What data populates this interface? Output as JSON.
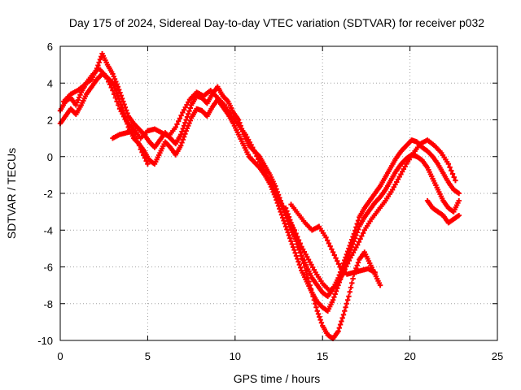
{
  "chart_data": {
    "type": "scatter",
    "title": "Day 175 of 2024, Sidereal Day-to-day VTEC variation (SDTVAR) for receiver p032",
    "xlabel": "GPS time / hours",
    "ylabel": "SDTVAR / TECUs",
    "xlim": [
      0,
      25
    ],
    "ylim": [
      -10,
      6
    ],
    "xticks": [
      0,
      5,
      10,
      15,
      20,
      25
    ],
    "yticks": [
      -10,
      -8,
      -6,
      -4,
      -2,
      0,
      2,
      4,
      6
    ],
    "grid": true,
    "marker": "plus",
    "colors": {
      "series": "#ff0000",
      "grid": "#a0a0a0",
      "axis": "#000000"
    },
    "series": [
      {
        "x": [
          0.0,
          0.3,
          0.6,
          0.9,
          1.2,
          1.5,
          1.8,
          2.1,
          2.4,
          2.7,
          3.0,
          3.3,
          3.6,
          3.9,
          4.2,
          4.5,
          4.8,
          5.1,
          5.4,
          5.7,
          6.0,
          6.3,
          6.6,
          6.9,
          7.2,
          7.5,
          7.8,
          8.1,
          8.4,
          8.7,
          9.0,
          9.3,
          9.6,
          9.9,
          10.2,
          10.5,
          10.8,
          11.1,
          11.4,
          11.7,
          12.0,
          12.3,
          12.6,
          12.9,
          13.2,
          13.5,
          13.8,
          14.1,
          14.4,
          14.7,
          15.0,
          15.3,
          15.6,
          15.9,
          16.2,
          16.5,
          16.8,
          17.1,
          17.4,
          17.7,
          18.0,
          18.3,
          18.6,
          18.9,
          19.2,
          19.5,
          19.8,
          20.1,
          20.4,
          20.7,
          21.0,
          21.3,
          21.6,
          21.9,
          22.2,
          22.5,
          22.8
        ],
        "y": [
          2.5,
          3.0,
          3.2,
          2.8,
          3.5,
          4.0,
          4.2,
          4.8,
          5.6,
          5.0,
          4.5,
          3.8,
          3.0,
          2.2,
          1.8,
          1.5,
          1.2,
          0.8,
          0.5,
          0.9,
          1.3,
          1.0,
          0.7,
          1.2,
          2.0,
          2.8,
          3.3,
          3.2,
          2.9,
          3.4,
          3.8,
          3.3,
          3.0,
          2.4,
          2.0,
          1.2,
          0.6,
          0.3,
          0.0,
          -0.5,
          -1.0,
          -1.6,
          -2.4,
          -3.2,
          -4.0,
          -4.6,
          -5.4,
          -6.0,
          -6.6,
          -7.0,
          -7.4,
          -7.6,
          -7.2,
          -6.6,
          -5.8,
          -5.0,
          -4.2,
          -3.3,
          -2.8,
          -2.4,
          -2.0,
          -1.6,
          -1.1,
          -0.6,
          -0.1,
          0.3,
          0.6,
          0.9,
          0.8,
          0.5,
          0.3,
          0.0,
          -0.4,
          -0.9,
          -1.4,
          -1.8,
          -2.0
        ]
      },
      {
        "x": [
          0.0,
          0.3,
          0.6,
          0.9,
          1.2,
          1.5,
          1.8,
          2.1,
          2.4,
          2.7,
          3.0,
          3.3,
          3.6,
          3.9,
          4.2,
          4.5,
          4.8,
          5.1,
          5.4,
          5.7,
          6.0,
          6.3,
          6.6,
          6.9,
          7.2,
          7.5,
          7.8,
          8.1,
          8.4,
          8.7,
          9.0,
          9.3,
          9.6,
          9.9,
          10.2,
          10.5,
          10.8,
          11.1,
          11.4,
          11.7,
          12.0,
          12.3,
          12.6,
          12.9,
          13.2,
          13.5,
          13.8,
          14.1,
          14.4,
          14.7,
          15.0,
          15.3,
          15.6,
          15.9,
          16.2,
          16.5,
          16.8,
          17.1,
          17.4,
          17.7,
          18.0,
          18.3,
          18.6,
          18.9,
          19.2,
          19.5,
          19.8,
          20.1,
          20.4,
          20.7,
          21.0,
          21.3,
          21.6,
          21.9,
          22.2,
          22.5,
          22.8
        ],
        "y": [
          1.8,
          2.2,
          2.6,
          2.3,
          2.8,
          3.4,
          3.8,
          4.2,
          4.5,
          4.3,
          4.0,
          3.3,
          2.5,
          1.6,
          1.0,
          0.7,
          0.3,
          -0.2,
          -0.4,
          0.2,
          0.8,
          0.5,
          0.1,
          0.6,
          1.4,
          2.1,
          2.6,
          2.5,
          2.2,
          2.7,
          3.1,
          2.7,
          2.3,
          1.8,
          1.2,
          0.6,
          0.0,
          -0.3,
          -0.6,
          -1.0,
          -1.5,
          -2.2,
          -3.0,
          -3.8,
          -4.6,
          -5.4,
          -6.2,
          -6.8,
          -7.4,
          -7.9,
          -8.2,
          -8.4,
          -7.8,
          -7.0,
          -6.2,
          -5.4,
          -4.6,
          -3.8,
          -3.3,
          -2.9,
          -2.5,
          -2.2,
          -1.8,
          -1.3,
          -0.8,
          -0.4,
          -0.1,
          0.1,
          0.0,
          -0.2,
          -0.6,
          -1.2,
          -1.8,
          -2.4,
          -2.8,
          -3.0,
          -2.4
        ]
      },
      {
        "x": [
          0.2,
          0.6,
          1.0,
          1.4,
          1.8,
          2.2,
          2.6,
          3.0,
          3.4,
          3.8,
          4.2,
          4.6,
          5.0,
          5.4,
          5.8,
          6.2,
          6.6,
          7.0,
          7.4,
          7.8,
          8.2,
          8.6,
          9.0,
          9.4,
          9.8,
          10.2,
          10.6,
          11.0,
          11.4,
          11.8,
          12.2,
          12.6,
          13.0,
          13.4,
          13.8,
          14.2,
          14.6,
          15.0,
          15.4,
          15.8,
          16.2,
          16.6,
          17.0,
          17.4,
          17.8,
          18.2,
          18.6,
          19.0,
          19.4,
          19.8,
          20.2,
          20.6,
          21.0,
          21.4,
          21.8,
          22.2,
          22.6
        ],
        "y": [
          3.0,
          3.4,
          3.6,
          3.9,
          4.4,
          4.8,
          4.4,
          3.6,
          2.6,
          1.9,
          1.5,
          1.0,
          1.4,
          1.5,
          1.3,
          1.1,
          1.6,
          2.4,
          3.1,
          3.5,
          3.3,
          3.6,
          3.2,
          2.8,
          2.2,
          1.7,
          1.2,
          0.5,
          -0.3,
          -1.0,
          -1.7,
          -2.5,
          -3.3,
          -4.0,
          -4.9,
          -5.6,
          -6.3,
          -6.9,
          -7.3,
          -7.0,
          -6.3,
          -5.5,
          -4.8,
          -4.0,
          -3.4,
          -2.9,
          -2.4,
          -1.8,
          -1.1,
          -0.4,
          0.2,
          0.7,
          0.9,
          0.6,
          0.2,
          -0.4,
          -1.3
        ]
      },
      {
        "x": [
          12.9,
          13.2,
          13.5,
          13.8,
          14.1,
          14.4,
          14.7,
          15.0,
          15.3,
          15.6,
          15.9,
          16.2,
          16.5,
          16.8,
          17.1,
          17.4,
          17.7,
          18.0,
          18.3
        ],
        "y": [
          -2.8,
          -3.6,
          -4.4,
          -5.4,
          -6.4,
          -7.4,
          -8.4,
          -9.2,
          -9.7,
          -9.9,
          -9.5,
          -8.6,
          -7.6,
          -6.4,
          -5.6,
          -5.2,
          -5.8,
          -6.4,
          -7.0
        ]
      },
      {
        "x": [
          13.2,
          13.6,
          14.0,
          14.4,
          14.8,
          15.2,
          15.6,
          16.0,
          16.4,
          16.8,
          17.2,
          17.6,
          18.0
        ],
        "y": [
          -2.6,
          -3.1,
          -3.6,
          -4.0,
          -3.8,
          -4.4,
          -5.2,
          -6.0,
          -6.4,
          -6.3,
          -6.2,
          -6.1,
          -6.3
        ]
      },
      {
        "x": [
          3.0,
          3.4,
          3.8,
          4.2,
          4.6,
          5.0
        ],
        "y": [
          1.0,
          1.2,
          1.3,
          1.4,
          0.4,
          -0.4
        ]
      },
      {
        "x": [
          21.0,
          21.3,
          21.6,
          21.9,
          22.2,
          22.5,
          22.8
        ],
        "y": [
          -2.4,
          -2.8,
          -3.0,
          -3.2,
          -3.6,
          -3.4,
          -3.2
        ]
      }
    ]
  }
}
